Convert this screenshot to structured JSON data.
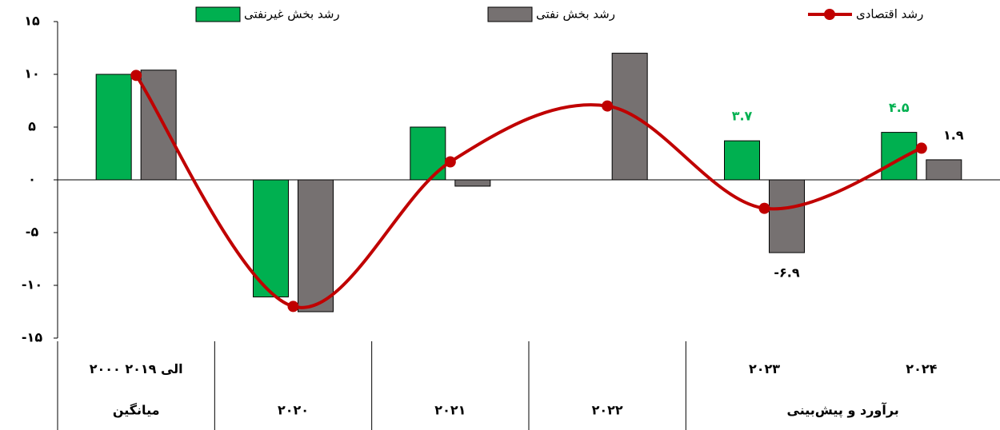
{
  "chart_data": {
    "type": "bar",
    "categories": [
      "۲۰۰۰ الی ۲۰۱۹",
      "۲۰۲۰",
      "۲۰۲۱",
      "۲۰۲۲",
      "۲۰۲۳",
      "۲۰۲۴"
    ],
    "x_groups": [
      {
        "label": "میانگین",
        "span": 1
      },
      {
        "label": null,
        "span": 3
      },
      {
        "label": "برآورد و پیش‌بینی",
        "span": 2
      }
    ],
    "series": [
      {
        "name": "رشد بخش غیرنفتی",
        "type": "bar",
        "color": "#00b050",
        "values": [
          10,
          -11.1,
          5,
          null,
          3.7,
          4.5
        ],
        "value_labels": [
          null,
          null,
          null,
          null,
          "۳.۷",
          "۴.۵"
        ]
      },
      {
        "name": "رشد بخش نفتی",
        "type": "bar",
        "color": "#767171",
        "values": [
          10.4,
          -12.5,
          -0.6,
          12,
          -6.9,
          1.9
        ],
        "value_labels": [
          null,
          null,
          null,
          null,
          "-۶.۹",
          "۱.۹"
        ]
      },
      {
        "name": "رشد اقتصادی",
        "type": "line",
        "color": "#c00000",
        "values": [
          9.9,
          -12,
          1.7,
          7,
          -2.7,
          3
        ]
      }
    ],
    "ylim": [
      -15,
      15
    ],
    "yticks": [
      {
        "value": -15,
        "label": "-۱۵"
      },
      {
        "value": -10,
        "label": "-۱۰"
      },
      {
        "value": -5,
        "label": "-۵"
      },
      {
        "value": 0,
        "label": "۰"
      },
      {
        "value": 5,
        "label": "۵"
      },
      {
        "value": 10,
        "label": "۱۰"
      },
      {
        "value": 15,
        "label": "۱۵"
      }
    ]
  }
}
